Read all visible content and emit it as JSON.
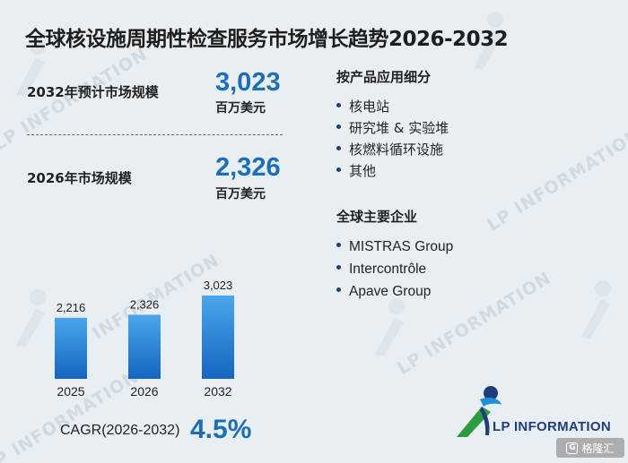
{
  "title": "全球核设施周期性检查服务市场增长趋势2026-2032",
  "stats": [
    {
      "label": "2032年预计市场规模",
      "value": "3,023",
      "unit": "百万美元"
    },
    {
      "label": "2026年市场规模",
      "value": "2,326",
      "unit": "百万美元"
    }
  ],
  "segments": {
    "title": "按产品应用细分",
    "items": [
      "核电站",
      "研究堆 & 实验堆",
      "核燃料循环设施",
      "其他"
    ]
  },
  "companies": {
    "title": "全球主要企业",
    "items": [
      "MISTRAS Group",
      "Intercontrôle",
      "Apave Group"
    ]
  },
  "cagr": {
    "label": "CAGR(2026-2032)",
    "value": "4.5%"
  },
  "watermark": {
    "text": "LP INFORMATION"
  },
  "logo": {
    "text": "LP INFORMATION"
  },
  "badge": {
    "text": "格隆汇",
    "icon": "g-icon"
  },
  "colors": {
    "accent": "#1c6fb6",
    "bar_top": "#4aa6ec",
    "bar_bottom": "#1565c0",
    "background": "#e9eef3",
    "navy": "#1e3d7a",
    "green": "#2e9b3e"
  },
  "chart_data": {
    "type": "bar",
    "categories": [
      "2025",
      "2026",
      "2032"
    ],
    "values": [
      2216,
      2326,
      3023
    ],
    "data_labels": [
      "2,216",
      "2,326",
      "3,023"
    ],
    "title": "",
    "xlabel": "",
    "ylabel": "",
    "ylim": [
      0,
      3200
    ],
    "grid": false,
    "legend": "none"
  }
}
